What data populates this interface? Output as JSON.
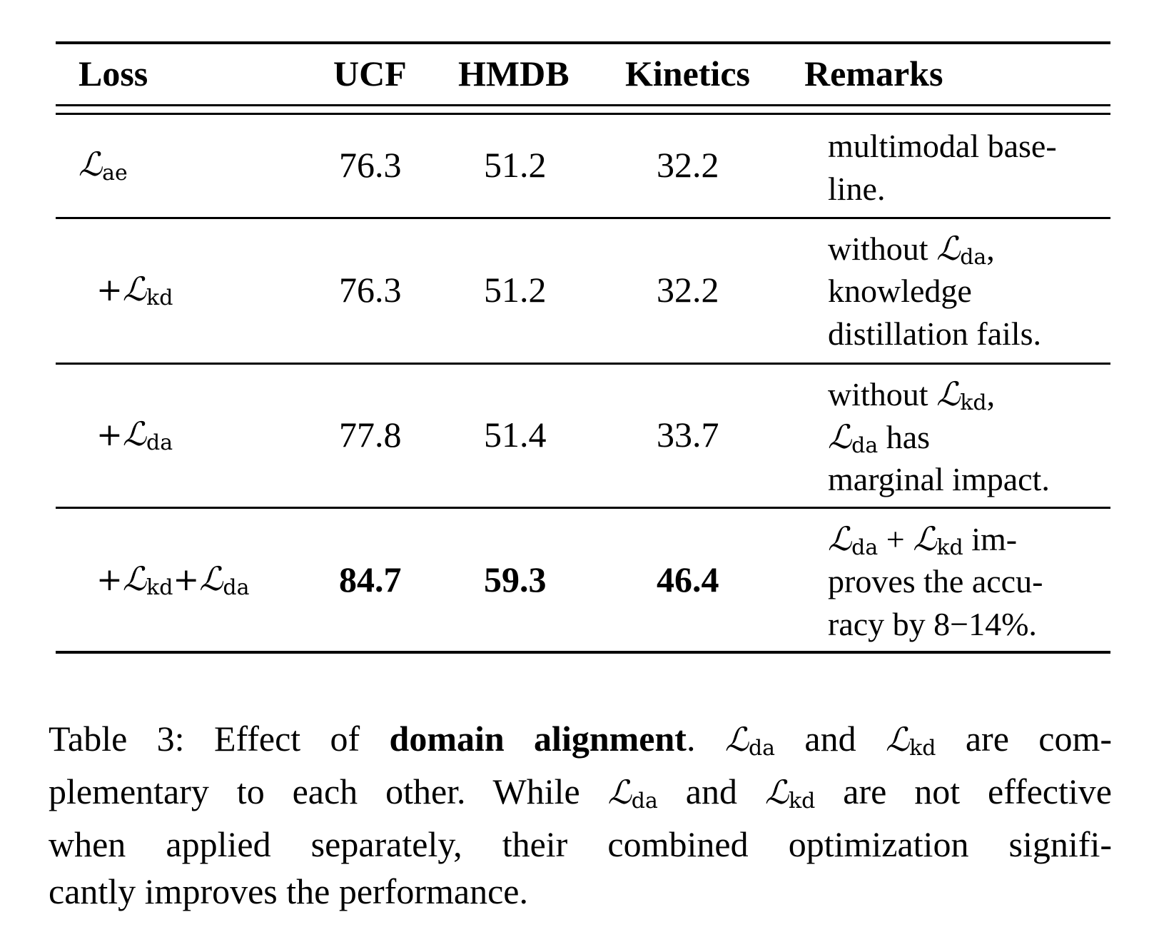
{
  "table": {
    "headers": {
      "loss": "Loss",
      "ucf": "UCF",
      "hmdb": "HMDB",
      "kinetics": "Kinetics",
      "remarks": "Remarks"
    },
    "rows": [
      {
        "loss_plus": "",
        "loss_symbol": "ℒ",
        "loss_sub": "ae",
        "ucf": "76.3",
        "hmdb": "51.2",
        "kinetics": "32.2",
        "remarks": [
          "multimodal base-",
          "line."
        ]
      },
      {
        "loss_plus": "+",
        "loss_symbol": "ℒ",
        "loss_sub": "kd",
        "ucf": "76.3",
        "hmdb": "51.2",
        "kinetics": "32.2",
        "remarks": [
          "without ℒda,",
          "knowledge",
          "distillation fails."
        ]
      },
      {
        "loss_plus": "+",
        "loss_symbol": "ℒ",
        "loss_sub": "da",
        "ucf": "77.8",
        "hmdb": "51.4",
        "kinetics": "33.7",
        "remarks": [
          "without ℒkd,",
          "ℒda has",
          "marginal impact."
        ]
      },
      {
        "loss_plus": "+",
        "loss_symbol": "ℒ",
        "loss_sub": "kd",
        "loss_plus2": "+",
        "loss_symbol2": "ℒ",
        "loss_sub2": "da",
        "ucf": "84.7",
        "hmdb": "59.3",
        "kinetics": "46.4",
        "remarks": [
          "ℒda + ℒkd im-",
          "proves the accu-",
          "racy by 8−14%."
        ]
      }
    ]
  },
  "caption": {
    "label": "Table 3: Effect of ",
    "bold": "domain alignment",
    "after_bold": ". ",
    "sym": "ℒ",
    "da": "da",
    "kd": "kd",
    "and": " and ",
    "line1_end": " are com-",
    "line2_start": "plementary to each other. While ",
    "line2_end": " are not effective",
    "line3": "when applied separately, their combined optimization signifi-",
    "line4": "cantly improves the performance."
  }
}
